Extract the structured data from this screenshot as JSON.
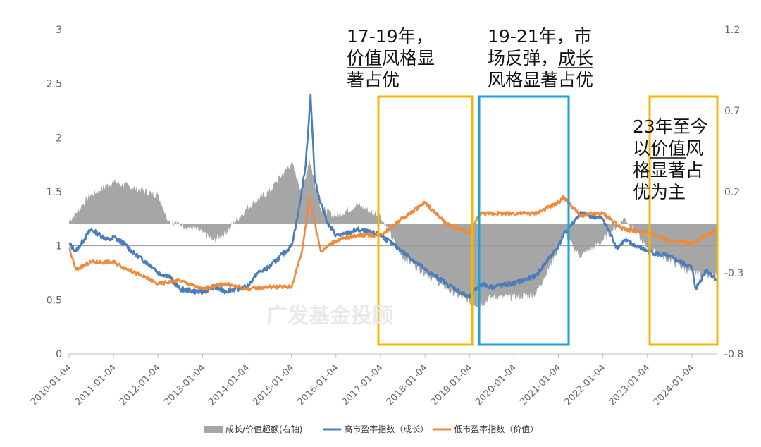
{
  "chart_data": {
    "type": "line",
    "left_axis": {
      "ylim": [
        0,
        3
      ],
      "ticks": [
        "3",
        "2.5",
        "2",
        "1.5",
        "1",
        "0.5",
        "0"
      ]
    },
    "right_axis": {
      "ylim": [
        -0.8,
        1.2
      ],
      "ticks": [
        "1.2",
        "0.7",
        "0.2",
        "-0.3",
        "-0.8"
      ]
    },
    "x_ticks": [
      "2010-01-04",
      "2011-01-04",
      "2012-01-04",
      "2013-01-04",
      "2014-01-04",
      "2015-01-04",
      "2016-01-04",
      "2017-01-04",
      "2018-01-04",
      "2019-01-04",
      "2020-01-04",
      "2021-01-04",
      "2022-01-04",
      "2023-01-04",
      "2024-01-04"
    ],
    "x_range": [
      "2010-01-04",
      "2024-07-31"
    ],
    "grid": false,
    "legend_position": "bottom",
    "series": [
      {
        "name": "成长/价值超额(右轴)",
        "axis": "right",
        "kind": "area",
        "color": "#a6a6a6",
        "x": [
          "2010-01-04",
          "2010-07-01",
          "2011-01-04",
          "2011-07-01",
          "2012-01-04",
          "2012-04-01",
          "2012-07-01",
          "2013-01-04",
          "2013-04-01",
          "2013-07-01",
          "2014-01-04",
          "2014-07-01",
          "2015-01-04",
          "2015-04-01",
          "2015-06-01",
          "2015-09-01",
          "2016-01-04",
          "2016-07-01",
          "2017-01-04",
          "2017-07-01",
          "2018-01-04",
          "2018-07-01",
          "2019-01-04",
          "2019-04-01",
          "2019-07-01",
          "2020-01-04",
          "2020-07-01",
          "2021-01-04",
          "2021-02-15",
          "2021-07-01",
          "2022-01-04",
          "2022-07-01",
          "2023-01-04",
          "2023-07-01",
          "2024-01-04",
          "2024-07-31"
        ],
        "values": [
          0.02,
          0.18,
          0.26,
          0.22,
          0.18,
          0.02,
          0.0,
          -0.05,
          -0.1,
          -0.06,
          0.1,
          0.2,
          0.38,
          0.2,
          0.4,
          0.1,
          0.05,
          0.12,
          0.05,
          -0.2,
          -0.3,
          -0.4,
          -0.48,
          -0.5,
          -0.45,
          -0.45,
          -0.43,
          -0.15,
          -0.05,
          -0.2,
          -0.1,
          0.04,
          -0.15,
          -0.22,
          -0.3,
          -0.32
        ]
      },
      {
        "name": "高市盈率指数（成长）",
        "axis": "left",
        "kind": "line",
        "color": "#4a7ebb",
        "x": [
          "2010-01-04",
          "2010-03-01",
          "2010-07-01",
          "2010-12-01",
          "2011-01-04",
          "2011-04-01",
          "2011-07-01",
          "2011-12-01",
          "2012-01-04",
          "2012-04-01",
          "2012-07-01",
          "2013-01-04",
          "2013-04-01",
          "2013-07-01",
          "2014-01-04",
          "2014-04-01",
          "2014-07-01",
          "2015-01-04",
          "2015-03-01",
          "2015-05-01",
          "2015-06-10",
          "2015-07-15",
          "2015-09-01",
          "2015-11-01",
          "2016-01-04",
          "2016-03-01",
          "2016-07-01",
          "2017-01-04",
          "2017-07-01",
          "2018-01-04",
          "2018-07-01",
          "2019-01-04",
          "2019-04-01",
          "2019-07-01",
          "2020-01-04",
          "2020-07-01",
          "2021-01-04",
          "2021-02-15",
          "2021-07-01",
          "2022-01-04",
          "2022-05-01",
          "2022-07-01",
          "2023-01-04",
          "2023-07-01",
          "2024-01-04",
          "2024-02-05",
          "2024-05-01",
          "2024-07-31"
        ],
        "values": [
          1.02,
          0.95,
          1.15,
          1.05,
          1.08,
          1.02,
          0.92,
          0.8,
          0.75,
          0.72,
          0.6,
          0.57,
          0.62,
          0.58,
          0.62,
          0.75,
          0.8,
          1.0,
          1.3,
          1.75,
          2.4,
          1.6,
          1.4,
          1.2,
          1.1,
          1.1,
          1.15,
          1.1,
          0.95,
          0.78,
          0.65,
          0.52,
          0.65,
          0.62,
          0.65,
          0.72,
          1.0,
          1.1,
          1.3,
          1.25,
          0.98,
          1.05,
          0.95,
          0.9,
          0.8,
          0.6,
          0.78,
          0.68
        ]
      },
      {
        "name": "低市盈率指数（价值）",
        "axis": "left",
        "kind": "line",
        "color": "#ef8a3c",
        "x": [
          "2010-01-04",
          "2010-03-01",
          "2010-07-01",
          "2011-01-04",
          "2011-07-01",
          "2012-01-04",
          "2012-07-01",
          "2013-01-04",
          "2013-07-01",
          "2014-01-04",
          "2014-07-01",
          "2015-01-04",
          "2015-04-01",
          "2015-06-01",
          "2015-09-01",
          "2016-01-04",
          "2016-07-01",
          "2017-01-04",
          "2017-07-01",
          "2018-01-04",
          "2018-07-01",
          "2019-01-04",
          "2019-04-01",
          "2020-01-04",
          "2020-07-01",
          "2021-01-04",
          "2021-02-15",
          "2021-07-01",
          "2022-01-04",
          "2022-07-01",
          "2023-01-04",
          "2023-07-01",
          "2024-01-04",
          "2024-07-31"
        ],
        "values": [
          0.98,
          0.78,
          0.85,
          0.85,
          0.75,
          0.65,
          0.68,
          0.6,
          0.65,
          0.6,
          0.62,
          0.62,
          0.95,
          1.45,
          0.95,
          1.05,
          1.1,
          1.1,
          1.25,
          1.4,
          1.2,
          1.12,
          1.3,
          1.3,
          1.3,
          1.4,
          1.45,
          1.28,
          1.3,
          1.15,
          1.12,
          1.05,
          1.02,
          1.15
        ]
      }
    ],
    "annotations": [
      {
        "lines": [
          "17-19年，",
          "价值风格显",
          "著占优"
        ],
        "box_from": "2017-07-01",
        "box_to": "2019-01-04",
        "box_color": "#f2b705",
        "underline_words": "价值"
      },
      {
        "lines": [
          "19-21年，市",
          "场反弹，成长",
          "风格显著占优"
        ],
        "box_from": "2019-03-01",
        "box_to": "2021-02-01",
        "box_color": "#1aa3d9",
        "underline_words": "成长"
      },
      {
        "lines": [
          "23年至今",
          "以价值风",
          "格显著占",
          "优为主"
        ],
        "box_from": "2022-12-01",
        "box_to": "2024-07-31",
        "box_color": "#f2b705",
        "underline_words": "价值"
      }
    ],
    "watermark": "广发基金投顾"
  }
}
